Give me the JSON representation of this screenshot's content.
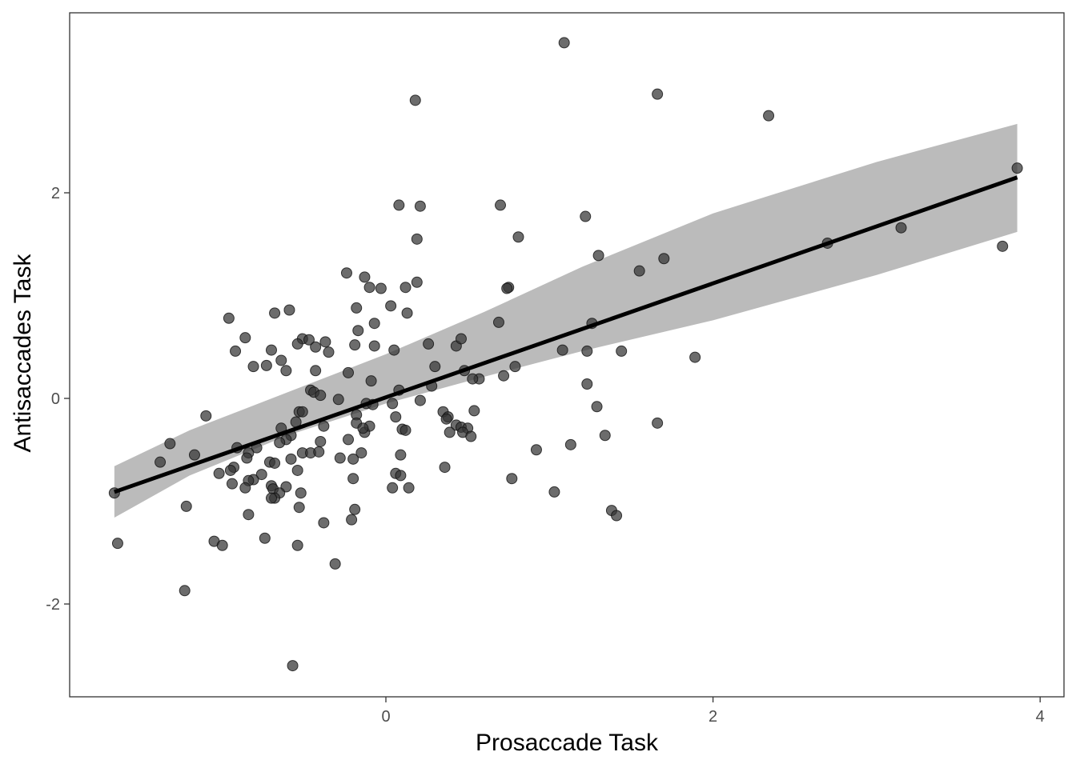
{
  "chart_data": {
    "type": "scatter",
    "xlabel": "Prosaccade Task",
    "ylabel": "Antisaccades Task",
    "xlim": [
      -1.9,
      4.15
    ],
    "ylim": [
      -2.9,
      3.75
    ],
    "x_ticks": [
      0,
      2,
      4
    ],
    "y_ticks": [
      -2,
      0,
      2
    ],
    "x_tick_labels": [
      "0",
      "2",
      "4"
    ],
    "y_tick_labels": [
      "-2",
      "0",
      "2"
    ],
    "grid": false,
    "points": [
      [
        1.09,
        3.46
      ],
      [
        0.18,
        2.9
      ],
      [
        1.66,
        2.96
      ],
      [
        2.34,
        2.75
      ],
      [
        3.86,
        2.24
      ],
      [
        0.08,
        1.88
      ],
      [
        0.21,
        1.87
      ],
      [
        0.7,
        1.88
      ],
      [
        1.22,
        1.77
      ],
      [
        0.81,
        1.57
      ],
      [
        0.19,
        1.55
      ],
      [
        2.7,
        1.51
      ],
      [
        3.15,
        1.66
      ],
      [
        3.77,
        1.48
      ],
      [
        1.3,
        1.39
      ],
      [
        1.7,
        1.36
      ],
      [
        1.55,
        1.24
      ],
      [
        -0.24,
        1.22
      ],
      [
        -0.13,
        1.18
      ],
      [
        -0.1,
        1.08
      ],
      [
        -0.03,
        1.07
      ],
      [
        0.12,
        1.08
      ],
      [
        0.19,
        1.13
      ],
      [
        0.75,
        1.08
      ],
      [
        0.74,
        1.07
      ],
      [
        -0.18,
        0.88
      ],
      [
        0.03,
        0.9
      ],
      [
        0.13,
        0.83
      ],
      [
        -0.59,
        0.86
      ],
      [
        -0.68,
        0.83
      ],
      [
        -0.96,
        0.78
      ],
      [
        -0.86,
        0.59
      ],
      [
        -0.17,
        0.66
      ],
      [
        -0.07,
        0.73
      ],
      [
        0.69,
        0.74
      ],
      [
        1.26,
        0.73
      ],
      [
        -0.51,
        0.58
      ],
      [
        -0.47,
        0.57
      ],
      [
        -0.37,
        0.55
      ],
      [
        -0.54,
        0.53
      ],
      [
        -0.43,
        0.5
      ],
      [
        -0.19,
        0.52
      ],
      [
        -0.07,
        0.51
      ],
      [
        0.26,
        0.53
      ],
      [
        0.43,
        0.51
      ],
      [
        0.46,
        0.58
      ],
      [
        -0.92,
        0.46
      ],
      [
        -0.7,
        0.47
      ],
      [
        -0.35,
        0.45
      ],
      [
        0.05,
        0.47
      ],
      [
        1.08,
        0.47
      ],
      [
        1.23,
        0.46
      ],
      [
        1.44,
        0.46
      ],
      [
        1.89,
        0.4
      ],
      [
        -0.64,
        0.37
      ],
      [
        -0.73,
        0.32
      ],
      [
        -0.81,
        0.31
      ],
      [
        -0.61,
        0.27
      ],
      [
        -0.43,
        0.27
      ],
      [
        -0.23,
        0.25
      ],
      [
        0.3,
        0.31
      ],
      [
        0.48,
        0.27
      ],
      [
        0.79,
        0.31
      ],
      [
        0.72,
        0.22
      ],
      [
        0.57,
        0.19
      ],
      [
        0.53,
        0.19
      ],
      [
        -0.09,
        0.17
      ],
      [
        0.28,
        0.12
      ],
      [
        1.23,
        0.14
      ],
      [
        -0.46,
        0.08
      ],
      [
        -0.44,
        0.06
      ],
      [
        -0.4,
        0.03
      ],
      [
        -0.29,
        -0.01
      ],
      [
        0.08,
        0.08
      ],
      [
        0.21,
        -0.02
      ],
      [
        -0.12,
        -0.05
      ],
      [
        -0.08,
        -0.06
      ],
      [
        0.04,
        -0.05
      ],
      [
        0.35,
        -0.13
      ],
      [
        0.38,
        -0.18
      ],
      [
        0.37,
        -0.2
      ],
      [
        0.43,
        -0.26
      ],
      [
        0.46,
        -0.28
      ],
      [
        0.5,
        -0.29
      ],
      [
        0.47,
        -0.33
      ],
      [
        0.52,
        -0.37
      ],
      [
        0.39,
        -0.33
      ],
      [
        0.54,
        -0.12
      ],
      [
        1.29,
        -0.08
      ],
      [
        1.66,
        -0.24
      ],
      [
        -1.1,
        -0.17
      ],
      [
        -0.53,
        -0.13
      ],
      [
        -0.51,
        -0.13
      ],
      [
        -0.18,
        -0.16
      ],
      [
        0.06,
        -0.18
      ],
      [
        -0.55,
        -0.23
      ],
      [
        -0.64,
        -0.29
      ],
      [
        -0.38,
        -0.27
      ],
      [
        -0.18,
        -0.24
      ],
      [
        -0.13,
        -0.33
      ],
      [
        -0.1,
        -0.27
      ],
      [
        -0.14,
        -0.29
      ],
      [
        0.1,
        -0.3
      ],
      [
        0.12,
        -0.31
      ],
      [
        -0.58,
        -0.36
      ],
      [
        -0.61,
        -0.4
      ],
      [
        -0.65,
        -0.43
      ],
      [
        -0.4,
        -0.42
      ],
      [
        -0.23,
        -0.4
      ],
      [
        -1.32,
        -0.44
      ],
      [
        -0.91,
        -0.48
      ],
      [
        -0.79,
        -0.48
      ],
      [
        -0.84,
        -0.53
      ],
      [
        -0.85,
        -0.58
      ],
      [
        -0.51,
        -0.53
      ],
      [
        -0.46,
        -0.53
      ],
      [
        -0.41,
        -0.52
      ],
      [
        -0.15,
        -0.53
      ],
      [
        -0.28,
        -0.58
      ],
      [
        -0.2,
        -0.59
      ],
      [
        -0.58,
        -0.59
      ],
      [
        0.09,
        -0.55
      ],
      [
        0.92,
        -0.5
      ],
      [
        1.13,
        -0.45
      ],
      [
        1.34,
        -0.36
      ],
      [
        -1.17,
        -0.55
      ],
      [
        -1.38,
        -0.62
      ],
      [
        -0.93,
        -0.67
      ],
      [
        -0.95,
        -0.7
      ],
      [
        -1.02,
        -0.73
      ],
      [
        -0.76,
        -0.74
      ],
      [
        -0.81,
        -0.79
      ],
      [
        -0.84,
        -0.8
      ],
      [
        -0.71,
        -0.62
      ],
      [
        -0.68,
        -0.63
      ],
      [
        -0.54,
        -0.7
      ],
      [
        -0.2,
        -0.78
      ],
      [
        0.36,
        -0.67
      ],
      [
        0.06,
        -0.73
      ],
      [
        0.09,
        -0.75
      ],
      [
        0.77,
        -0.78
      ],
      [
        -0.94,
        -0.83
      ],
      [
        -0.86,
        -0.87
      ],
      [
        -0.7,
        -0.85
      ],
      [
        -0.69,
        -0.88
      ],
      [
        -0.61,
        -0.86
      ],
      [
        -0.52,
        -0.92
      ],
      [
        -0.65,
        -0.92
      ],
      [
        -0.68,
        -0.97
      ],
      [
        -0.7,
        -0.97
      ],
      [
        0.04,
        -0.87
      ],
      [
        0.14,
        -0.87
      ],
      [
        1.03,
        -0.91
      ],
      [
        -1.66,
        -0.92
      ],
      [
        -1.22,
        -1.05
      ],
      [
        -0.53,
        -1.06
      ],
      [
        -0.19,
        -1.08
      ],
      [
        -0.84,
        -1.13
      ],
      [
        -0.38,
        -1.21
      ],
      [
        -0.21,
        -1.18
      ],
      [
        1.38,
        -1.09
      ],
      [
        1.41,
        -1.14
      ],
      [
        -0.74,
        -1.36
      ],
      [
        -1.05,
        -1.39
      ],
      [
        -1.0,
        -1.43
      ],
      [
        -1.64,
        -1.41
      ],
      [
        -0.54,
        -1.43
      ],
      [
        -0.31,
        -1.61
      ],
      [
        -1.23,
        -1.87
      ],
      [
        -0.57,
        -2.6
      ]
    ],
    "trend_line": {
      "x": [
        -1.66,
        3.86
      ],
      "y": [
        -0.91,
        2.15
      ]
    },
    "confidence_band": {
      "x": [
        -1.66,
        -1.2,
        -0.6,
        0.0,
        0.6,
        1.2,
        2.0,
        3.0,
        3.86
      ],
      "upper": [
        -0.66,
        -0.31,
        0.06,
        0.43,
        0.84,
        1.28,
        1.8,
        2.3,
        2.67
      ],
      "lower": [
        -1.16,
        -0.75,
        -0.36,
        -0.05,
        0.21,
        0.46,
        0.76,
        1.2,
        1.62
      ]
    },
    "colors": {
      "points": "#333333",
      "trend_line": "#000000",
      "band": "#bbbbbb",
      "panel_border": "#333333"
    }
  }
}
